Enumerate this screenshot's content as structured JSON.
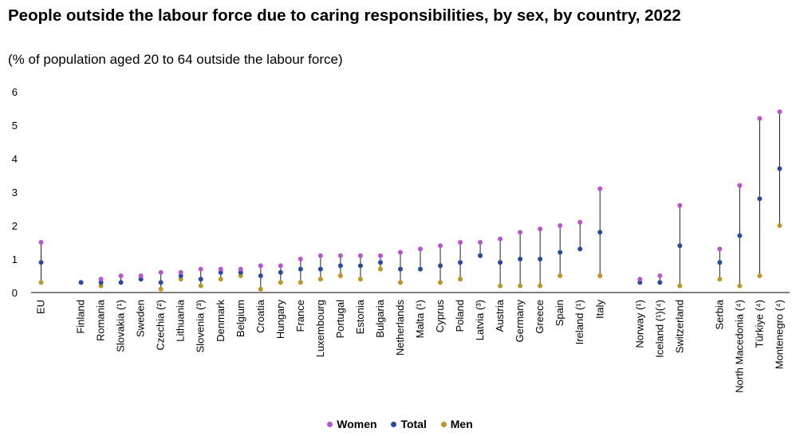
{
  "chart_data": {
    "type": "dot-range",
    "title": "People outside the labour force due to caring responsibilities, by sex, by country, 2022",
    "subtitle": "(% of population aged 20 to 64 outside the labour force)",
    "ylim": [
      0,
      6
    ],
    "yticks": [
      0,
      1,
      2,
      3,
      4,
      5,
      6
    ],
    "grid": false,
    "legend_position": "bottom",
    "categories": [
      "EU",
      "Finland",
      "Romania",
      "Slovakia (¹)",
      "Sweden",
      "Czechia (²)",
      "Lithuania",
      "Slovenia (³)",
      "Denmark",
      "Belgium",
      "Croatia",
      "Hungary",
      "France",
      "Luxembourg",
      "Portugal",
      "Estonia",
      "Bulgaria",
      "Netherlands",
      "Malta (¹)",
      "Cyprus",
      "Poland",
      "Latvia (³)",
      "Austria",
      "Germany",
      "Greece",
      "Spain",
      "Ireland (¹)",
      "Italy",
      "Norway (¹)",
      "Iceland (¹)(⁴)",
      "Switzerland",
      "Serbia",
      "North Macedonia (⁴)",
      "Türkiye (⁴)",
      "Montenegro (⁴)"
    ],
    "groups": [
      1,
      27,
      3,
      4
    ],
    "series": [
      {
        "name": "Women",
        "color": "#b656c9",
        "values": [
          1.5,
          null,
          0.4,
          0.5,
          0.5,
          0.6,
          0.6,
          0.7,
          0.7,
          0.7,
          0.8,
          0.8,
          1.0,
          1.1,
          1.1,
          1.1,
          1.1,
          1.2,
          1.3,
          1.4,
          1.5,
          1.5,
          1.6,
          1.8,
          1.9,
          2.0,
          2.1,
          3.1,
          0.4,
          0.5,
          2.6,
          1.3,
          3.2,
          5.2,
          5.4
        ]
      },
      {
        "name": "Total",
        "color": "#2a4b9b",
        "values": [
          0.9,
          0.3,
          0.3,
          0.3,
          0.4,
          0.3,
          0.5,
          0.4,
          0.6,
          0.6,
          0.5,
          0.6,
          0.7,
          0.7,
          0.8,
          0.8,
          0.9,
          0.7,
          0.7,
          0.8,
          0.9,
          1.1,
          0.9,
          1.0,
          1.0,
          1.2,
          1.3,
          1.8,
          0.3,
          0.3,
          1.4,
          0.9,
          1.7,
          2.8,
          3.7
        ]
      },
      {
        "name": "Men",
        "color": "#b9952c",
        "values": [
          0.3,
          0.3,
          0.2,
          null,
          0.4,
          0.1,
          0.4,
          0.2,
          0.4,
          0.5,
          0.1,
          0.3,
          0.3,
          0.4,
          0.5,
          0.4,
          0.7,
          0.3,
          null,
          0.3,
          0.4,
          1.1,
          0.2,
          0.2,
          0.2,
          0.5,
          null,
          0.5,
          null,
          null,
          0.2,
          0.4,
          0.2,
          0.5,
          2.0
        ]
      }
    ]
  }
}
